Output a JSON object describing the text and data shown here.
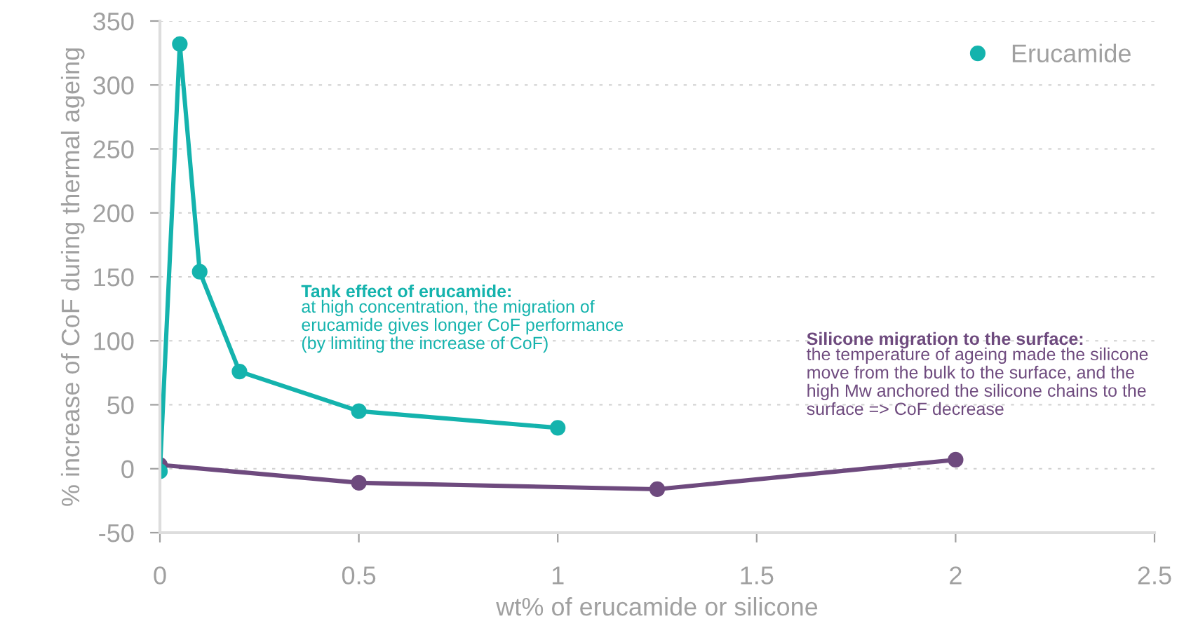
{
  "chart_data": {
    "type": "line",
    "xlabel": "wt% of erucamide or silicone",
    "ylabel": "% increase of CoF during thermal ageing",
    "xlim": [
      0,
      2.5
    ],
    "xticks": [
      0,
      0.5,
      1,
      1.5,
      2,
      2.5
    ],
    "ylim": [
      -50,
      350
    ],
    "yticks": [
      -50,
      0,
      50,
      100,
      150,
      200,
      250,
      300,
      350
    ],
    "series": [
      {
        "color": "#6e4a7e",
        "x": [
          0,
          0.5,
          1.25,
          2
        ],
        "values": [
          3,
          -11,
          -16,
          7
        ]
      },
      {
        "name": "Erucamide",
        "color": "#14b3ad",
        "x": [
          0,
          0.05,
          0.1,
          0.2,
          0.5,
          1
        ],
        "values": [
          -2,
          332,
          154,
          76,
          45,
          32
        ]
      }
    ],
    "annotations": [
      "Tank effect of erucamide:",
      "at high concentration, the migration of\nerucamide gives longer CoF performance\n(by limiting the increase of CoF)",
      "Silicone migration to the surface:",
      "the temperature of ageing made the silicone\nmove from the bulk to the surface, and the\nhigh Mw anchored the silicone chains to the\nsurface => CoF decrease"
    ],
    "grid": "y",
    "legend": "top right",
    "marker": "circle",
    "line_style": "solid"
  }
}
